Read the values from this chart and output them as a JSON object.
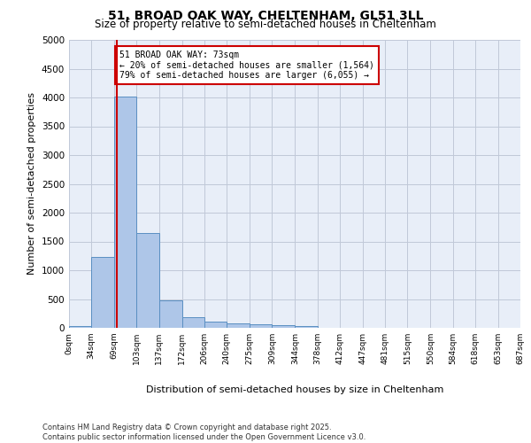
{
  "title_line1": "51, BROAD OAK WAY, CHELTENHAM, GL51 3LL",
  "title_line2": "Size of property relative to semi-detached houses in Cheltenham",
  "xlabel": "Distribution of semi-detached houses by size in Cheltenham",
  "ylabel": "Number of semi-detached properties",
  "footer_line1": "Contains HM Land Registry data © Crown copyright and database right 2025.",
  "footer_line2": "Contains public sector information licensed under the Open Government Licence v3.0.",
  "property_label": "51 BROAD OAK WAY: 73sqm",
  "smaller_text": "← 20% of semi-detached houses are smaller (1,564)",
  "larger_text": "79% of semi-detached houses are larger (6,055) →",
  "property_size": 73,
  "bin_edges": [
    0,
    34,
    69,
    103,
    137,
    172,
    206,
    240,
    275,
    309,
    344,
    378,
    412,
    447,
    481,
    515,
    550,
    584,
    618,
    653,
    687
  ],
  "bin_labels": [
    "0sqm",
    "34sqm",
    "69sqm",
    "103sqm",
    "137sqm",
    "172sqm",
    "206sqm",
    "240sqm",
    "275sqm",
    "309sqm",
    "344sqm",
    "378sqm",
    "412sqm",
    "447sqm",
    "481sqm",
    "515sqm",
    "550sqm",
    "584sqm",
    "618sqm",
    "653sqm",
    "687sqm"
  ],
  "bar_values": [
    30,
    1230,
    4020,
    1640,
    480,
    190,
    110,
    70,
    55,
    50,
    30,
    0,
    0,
    0,
    0,
    0,
    0,
    0,
    0,
    0
  ],
  "bar_color": "#aec6e8",
  "bar_edge_color": "#5a8fc2",
  "vline_color": "#cc0000",
  "vline_x": 73,
  "annotation_box_color": "#cc0000",
  "ylim": [
    0,
    5000
  ],
  "yticks": [
    0,
    500,
    1000,
    1500,
    2000,
    2500,
    3000,
    3500,
    4000,
    4500,
    5000
  ],
  "grid_color": "#c0c8d8",
  "bg_color": "#e8eef8",
  "fig_bg_color": "#ffffff"
}
